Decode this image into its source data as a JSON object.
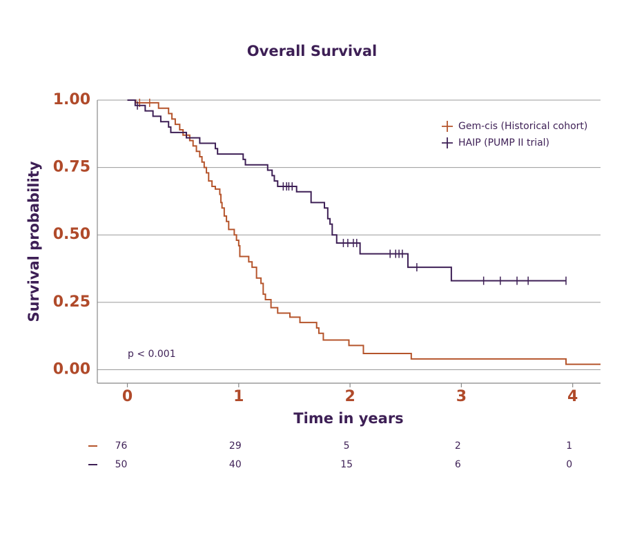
{
  "chart_data": {
    "type": "step",
    "title": "Overall Survival",
    "x_label": "Time in years",
    "y_label": "Survival probability",
    "annotation": "p < 0.001",
    "xlim": [
      -0.27,
      4.25
    ],
    "ylim": [
      -0.05,
      1.0
    ],
    "xticks": [
      0,
      1,
      2,
      3,
      4
    ],
    "yticks": [
      {
        "value": 1,
        "label": "1.00"
      },
      0.75,
      {
        "value": 0.5,
        "label": "0.50"
      },
      0.25,
      {
        "value": 0,
        "label": "0.00"
      }
    ],
    "grid": true,
    "legend": "upper right",
    "series": [
      {
        "name": "Gem-cis (Historical cohort)",
        "color": "#b5542b",
        "x": [
          0,
          0.075,
          0.28,
          0.37,
          0.4,
          0.43,
          0.47,
          0.5,
          0.56,
          0.59,
          0.62,
          0.65,
          0.67,
          0.69,
          0.71,
          0.73,
          0.76,
          0.79,
          0.83,
          0.84,
          0.85,
          0.87,
          0.89,
          0.91,
          0.96,
          0.98,
          1.0,
          1.01,
          1.09,
          1.12,
          1.16,
          1.2,
          1.22,
          1.24,
          1.29,
          1.35,
          1.46,
          1.55,
          1.7,
          1.72,
          1.76,
          1.99,
          2.12,
          2.55,
          3.94,
          4.25
        ],
        "values": [
          1.0,
          0.99,
          0.97,
          0.95,
          0.93,
          0.91,
          0.89,
          0.87,
          0.85,
          0.83,
          0.81,
          0.79,
          0.77,
          0.75,
          0.73,
          0.7,
          0.68,
          0.67,
          0.65,
          0.62,
          0.6,
          0.57,
          0.55,
          0.52,
          0.5,
          0.48,
          0.46,
          0.42,
          0.4,
          0.38,
          0.34,
          0.32,
          0.28,
          0.26,
          0.23,
          0.21,
          0.195,
          0.175,
          0.155,
          0.135,
          0.11,
          0.09,
          0.06,
          0.04,
          0.02,
          0.02
        ],
        "censor_x": [
          0.11,
          0.2
        ],
        "censor_values": [
          0.99,
          0.99
        ],
        "at_risk": [
          76,
          29,
          5,
          2,
          1
        ]
      },
      {
        "name": "HAIP (PUMP II trial)",
        "color": "#3d1f55",
        "x": [
          0,
          0.07,
          0.16,
          0.23,
          0.3,
          0.37,
          0.39,
          0.53,
          0.65,
          0.79,
          0.81,
          1.04,
          1.06,
          1.26,
          1.3,
          1.32,
          1.35,
          1.52,
          1.65,
          1.77,
          1.8,
          1.82,
          1.84,
          1.88,
          2.09,
          2.52,
          2.91,
          3.94
        ],
        "values": [
          1.0,
          0.98,
          0.96,
          0.94,
          0.92,
          0.9,
          0.88,
          0.86,
          0.84,
          0.82,
          0.8,
          0.78,
          0.76,
          0.74,
          0.72,
          0.7,
          0.68,
          0.66,
          0.62,
          0.6,
          0.56,
          0.54,
          0.5,
          0.47,
          0.43,
          0.38,
          0.33,
          0.33
        ],
        "censor_x": [
          0.09,
          1.4,
          1.43,
          1.45,
          1.48,
          1.94,
          1.98,
          2.03,
          2.06,
          2.36,
          2.41,
          2.44,
          2.47,
          2.6,
          3.2,
          3.35,
          3.5,
          3.6,
          3.94
        ],
        "censor_values": [
          0.98,
          0.68,
          0.68,
          0.68,
          0.68,
          0.47,
          0.47,
          0.47,
          0.47,
          0.43,
          0.43,
          0.43,
          0.43,
          0.38,
          0.33,
          0.33,
          0.33,
          0.33,
          0.33
        ],
        "at_risk": [
          50,
          40,
          15,
          6,
          0
        ]
      }
    ]
  }
}
